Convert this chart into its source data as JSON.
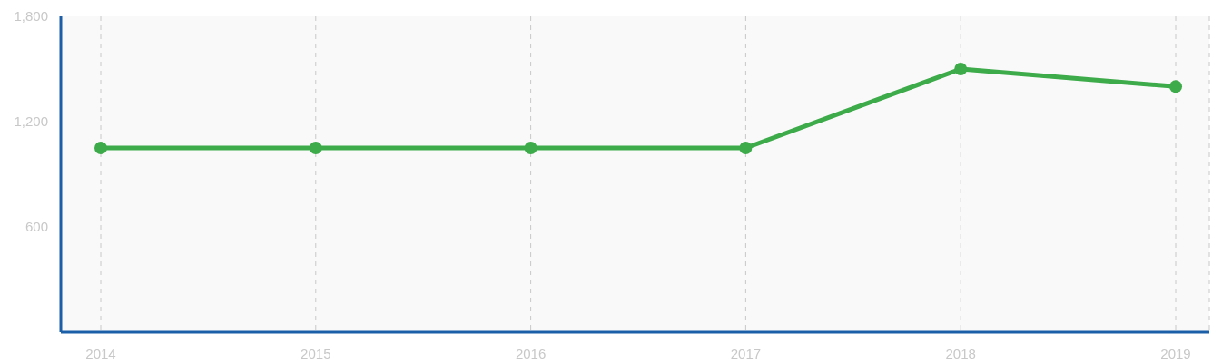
{
  "chart_data": {
    "type": "line",
    "categories": [
      "2014",
      "2015",
      "2016",
      "2017",
      "2018",
      "2019"
    ],
    "series": [
      {
        "color": "#3dab4a",
        "values": [
          1050,
          1050,
          1050,
          1050,
          1500,
          1400
        ]
      }
    ],
    "ylim": [
      0,
      1800
    ],
    "yticks": [
      600,
      {
        "value": 1200,
        "label": "1,200"
      },
      {
        "value": 1800,
        "label": "1,800"
      }
    ],
    "grid": "x",
    "marker": "circle",
    "line_style": "solid"
  }
}
